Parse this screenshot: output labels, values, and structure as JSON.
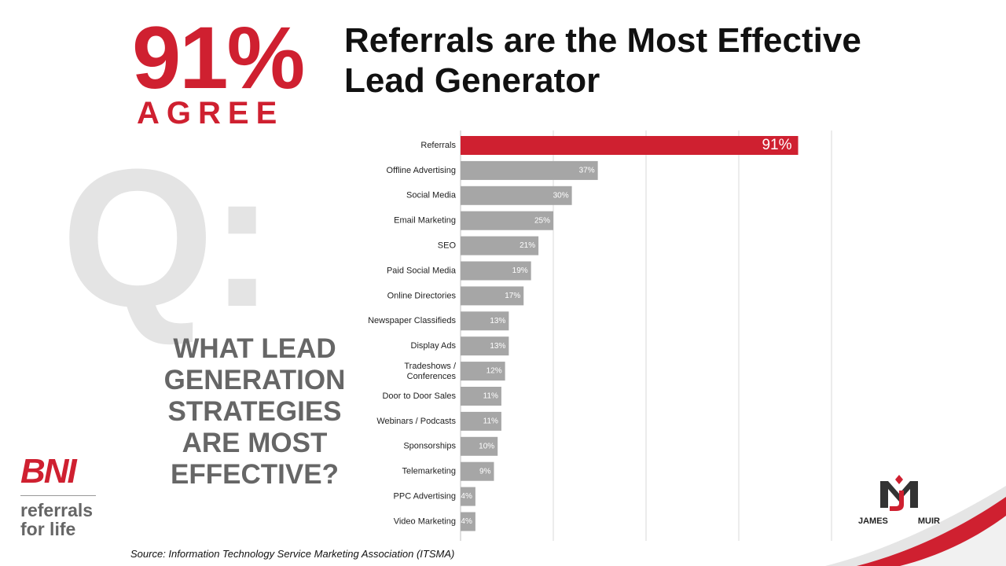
{
  "headline": {
    "stat": "91%",
    "agree": "AGREE",
    "title_line1": "Referrals are the Most Effective",
    "title_line2": "Lead Generator"
  },
  "question": {
    "mark": "Q:",
    "line1": "WHAT LEAD",
    "line2": "GENERATION",
    "line3": "STRATEGIES",
    "line4": "ARE MOST",
    "line5": "EFFECTIVE?"
  },
  "source": "Source: Information Technology Service Marketing Association (ITSMA)",
  "logos": {
    "bni": "BNI",
    "bni_tagline_1": "referrals",
    "bni_tagline_2": "for life",
    "jm_left": "JAMES",
    "jm_right": "MUIR"
  },
  "colors": {
    "highlight": "#cf2030",
    "bar": "#a6a6a6",
    "grid": "#d9d9d9"
  },
  "chart_data": {
    "type": "bar",
    "orientation": "horizontal",
    "categories": [
      "Referrals",
      "Offline Advertising",
      "Social Media",
      "Email Marketing",
      "SEO",
      "Paid Social Media",
      "Online Directories",
      "Newspaper Classifieds",
      "Display Ads",
      "Tradeshows / Conferences",
      "Door to Door Sales",
      "Webinars / Podcasts",
      "Sponsorships",
      "Telemarketing",
      "PPC Advertising",
      "Video Marketing"
    ],
    "values": [
      91,
      37,
      30,
      25,
      21,
      19,
      17,
      13,
      13,
      12,
      11,
      11,
      10,
      9,
      4,
      4
    ],
    "data_labels": [
      "91%",
      "37%",
      "30%",
      "25%",
      "21%",
      "19%",
      "17%",
      "13%",
      "13%",
      "12%",
      "11%",
      "11%",
      "10%",
      "9%",
      "4%",
      "4%"
    ],
    "xlim": [
      0,
      100
    ],
    "grid": true
  }
}
